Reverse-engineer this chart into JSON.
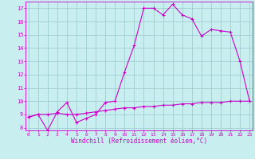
{
  "xlabel": "Windchill (Refroidissement éolien,°C)",
  "bg_color": "#c8eef0",
  "grid_color": "#a0cdd0",
  "line_color": "#cc00cc",
  "x_ticks": [
    0,
    1,
    2,
    3,
    4,
    5,
    6,
    7,
    8,
    9,
    10,
    11,
    12,
    13,
    14,
    15,
    16,
    17,
    18,
    19,
    20,
    21,
    22,
    23
  ],
  "y_ticks": [
    8,
    9,
    10,
    11,
    12,
    13,
    14,
    15,
    16,
    17
  ],
  "ylim": [
    7.8,
    17.5
  ],
  "xlim": [
    -0.3,
    23.3
  ],
  "line1_x": [
    0,
    1,
    2,
    3,
    4,
    5,
    6,
    7,
    8,
    9,
    10,
    11,
    12,
    13,
    14,
    15,
    16,
    17,
    18,
    19,
    20,
    21,
    22,
    23
  ],
  "line1_y": [
    8.8,
    9.0,
    7.8,
    9.2,
    9.9,
    8.4,
    8.7,
    9.0,
    9.9,
    10.0,
    12.2,
    14.2,
    17.0,
    17.0,
    16.5,
    17.3,
    16.5,
    16.2,
    14.9,
    15.4,
    15.3,
    15.2,
    13.0,
    10.0
  ],
  "line2_x": [
    0,
    1,
    2,
    3,
    4,
    5,
    6,
    7,
    8,
    9,
    10,
    11,
    12,
    13,
    14,
    15,
    16,
    17,
    18,
    19,
    20,
    21,
    22,
    23
  ],
  "line2_y": [
    8.8,
    9.0,
    9.0,
    9.1,
    9.0,
    9.0,
    9.1,
    9.2,
    9.3,
    9.4,
    9.5,
    9.5,
    9.6,
    9.6,
    9.7,
    9.7,
    9.8,
    9.8,
    9.9,
    9.9,
    9.9,
    10.0,
    10.0,
    10.0
  ]
}
